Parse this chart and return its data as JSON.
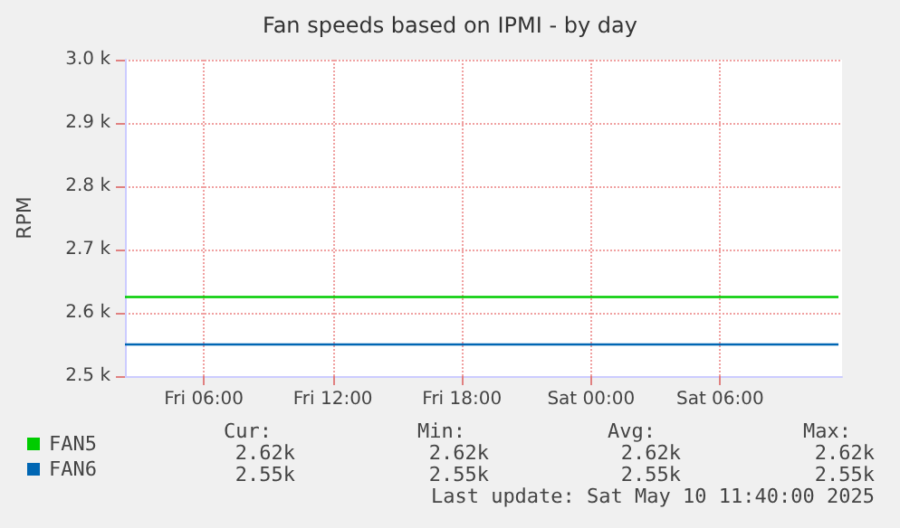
{
  "chart_data": {
    "type": "line",
    "title": "Fan speeds based on IPMI - by day",
    "ylabel": "RPM",
    "x": [
      "2025-05-09T02:20",
      "2025-05-10T11:30"
    ],
    "series": [
      {
        "name": "FAN5",
        "color": "#00cc00",
        "values": [
          2625,
          2625
        ]
      },
      {
        "name": "FAN6",
        "color": "#0066b3",
        "values": [
          2550,
          2550
        ]
      }
    ],
    "xlim": [
      "2025-05-09T02:20",
      "2025-05-10T11:40"
    ],
    "xticks": [
      {
        "value": "2025-05-09T06:00",
        "label": "Fri 06:00"
      },
      {
        "value": "2025-05-09T12:00",
        "label": "Fri 12:00"
      },
      {
        "value": "2025-05-09T18:00",
        "label": "Fri 18:00"
      },
      {
        "value": "2025-05-10T00:00",
        "label": "Sat 00:00"
      },
      {
        "value": "2025-05-10T06:00",
        "label": "Sat 06:00"
      }
    ],
    "ylim": [
      2500,
      3000
    ],
    "yticks": [
      {
        "value": 2500,
        "label": "2.5 k"
      },
      {
        "value": 2600,
        "label": "2.6 k"
      },
      {
        "value": 2700,
        "label": "2.7 k"
      },
      {
        "value": 2800,
        "label": "2.8 k"
      },
      {
        "value": 2900,
        "label": "2.9 k"
      },
      {
        "value": 3000,
        "label": "3.0 k"
      }
    ],
    "grid": true,
    "legend": "bottom left",
    "marker": "none",
    "line_style": "solid",
    "annotations": [
      "Cur:",
      "Min:",
      "Avg:",
      "Max:",
      "2.62k",
      "2.62k",
      "2.62k",
      "2.62k",
      "2.55k",
      "2.55k",
      "2.55k",
      "2.55k",
      "Last update: Sat May 10 11:40:00 2025"
    ]
  }
}
